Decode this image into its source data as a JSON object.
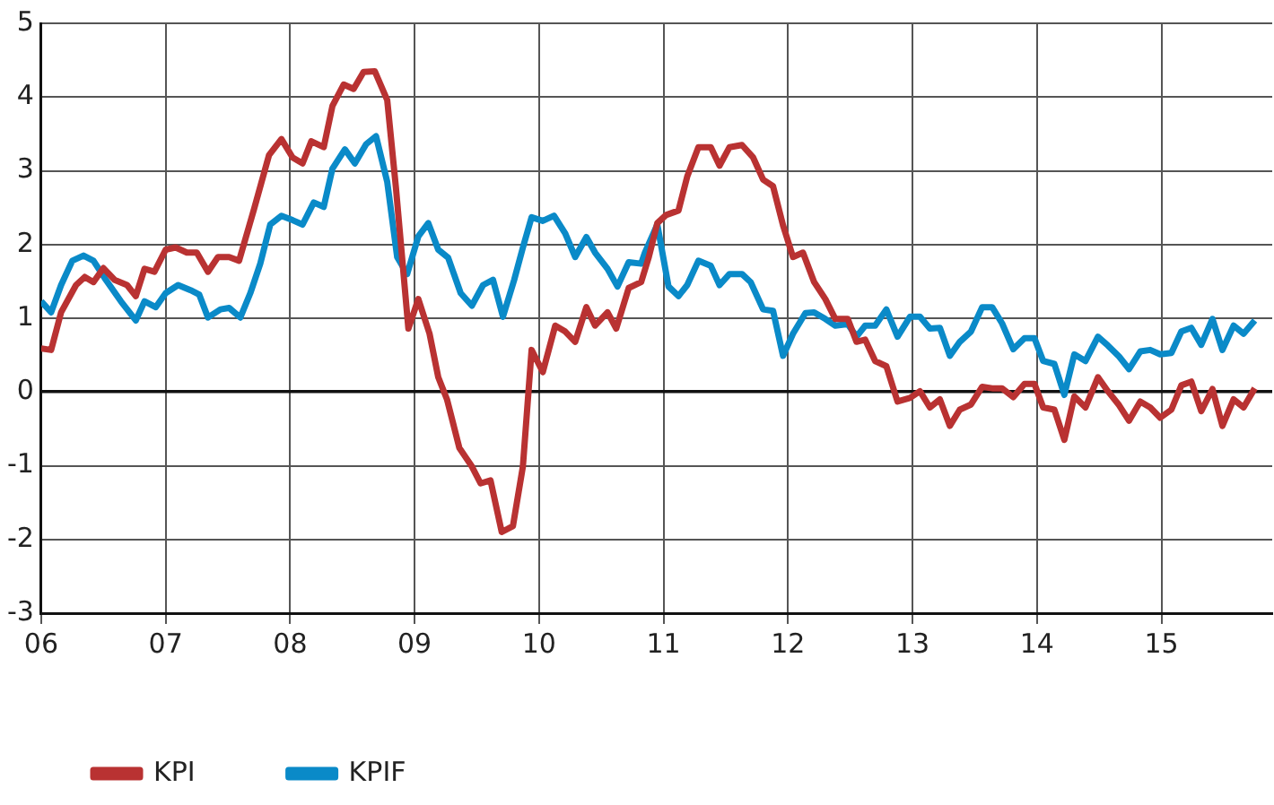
{
  "chart_data": {
    "type": "line",
    "xlim": [
      2006,
      2015.89
    ],
    "ylim": [
      -3,
      5
    ],
    "xticks": [
      {
        "value": 2006,
        "label": "06"
      },
      {
        "value": 2007,
        "label": "07"
      },
      {
        "value": 2008,
        "label": "08"
      },
      {
        "value": 2009,
        "label": "09"
      },
      {
        "value": 2010,
        "label": "10"
      },
      {
        "value": 2011,
        "label": "11"
      },
      {
        "value": 2012,
        "label": "12"
      },
      {
        "value": 2013,
        "label": "13"
      },
      {
        "value": 2014,
        "label": "14"
      },
      {
        "value": 2015,
        "label": "15"
      }
    ],
    "yticks": [
      -3,
      -2,
      -1,
      0,
      1,
      2,
      3,
      4,
      5
    ],
    "grid": true,
    "legend": "bottom left",
    "marker": "none",
    "line_style": "solid",
    "series": [
      {
        "name": "KPI",
        "color": "#b93232",
        "x": [
          2006.0,
          2006.08,
          2006.16,
          2006.28,
          2006.35,
          2006.42,
          2006.5,
          2006.59,
          2006.69,
          2006.76,
          2006.83,
          2006.91,
          2007.0,
          2007.08,
          2007.17,
          2007.25,
          2007.34,
          2007.42,
          2007.51,
          2007.59,
          2007.71,
          2007.83,
          2007.93,
          2008.02,
          2008.1,
          2008.17,
          2008.27,
          2008.34,
          2008.43,
          2008.51,
          2008.59,
          2008.68,
          2008.78,
          2008.85,
          2008.95,
          2009.03,
          2009.12,
          2009.19,
          2009.26,
          2009.36,
          2009.46,
          2009.53,
          2009.61,
          2009.7,
          2009.79,
          2009.87,
          2009.94,
          2010.03,
          2010.13,
          2010.21,
          2010.29,
          2010.38,
          2010.45,
          2010.55,
          2010.62,
          2010.72,
          2010.82,
          2010.88,
          2010.95,
          2011.02,
          2011.12,
          2011.19,
          2011.28,
          2011.38,
          2011.45,
          2011.53,
          2011.63,
          2011.72,
          2011.8,
          2011.88,
          2011.96,
          2012.04,
          2012.12,
          2012.21,
          2012.3,
          2012.38,
          2012.48,
          2012.55,
          2012.62,
          2012.7,
          2012.79,
          2012.88,
          2012.98,
          2013.06,
          2013.14,
          2013.22,
          2013.3,
          2013.38,
          2013.47,
          2013.56,
          2013.64,
          2013.72,
          2013.81,
          2013.9,
          2013.98,
          2014.05,
          2014.14,
          2014.22,
          2014.3,
          2014.39,
          2014.49,
          2014.57,
          2014.66,
          2014.74,
          2014.83,
          2014.91,
          2014.99,
          2015.08,
          2015.16,
          2015.24,
          2015.32,
          2015.41,
          2015.49,
          2015.58,
          2015.66,
          2015.75
        ],
        "values": [
          0.59,
          0.57,
          1.08,
          1.45,
          1.56,
          1.49,
          1.68,
          1.52,
          1.45,
          1.3,
          1.67,
          1.63,
          1.93,
          1.96,
          1.89,
          1.89,
          1.63,
          1.83,
          1.83,
          1.78,
          2.48,
          3.21,
          3.43,
          3.18,
          3.1,
          3.4,
          3.32,
          3.88,
          4.17,
          4.11,
          4.34,
          4.35,
          3.96,
          2.77,
          0.86,
          1.26,
          0.79,
          0.2,
          -0.1,
          -0.76,
          -1.01,
          -1.24,
          -1.2,
          -1.9,
          -1.82,
          -1.01,
          0.57,
          0.27,
          0.9,
          0.82,
          0.68,
          1.15,
          0.9,
          1.08,
          0.86,
          1.41,
          1.49,
          1.82,
          2.29,
          2.4,
          2.46,
          2.92,
          3.32,
          3.32,
          3.07,
          3.32,
          3.35,
          3.18,
          2.88,
          2.79,
          2.26,
          1.83,
          1.89,
          1.49,
          1.26,
          0.99,
          0.99,
          0.68,
          0.71,
          0.42,
          0.35,
          -0.13,
          -0.08,
          0.01,
          -0.21,
          -0.1,
          -0.46,
          -0.24,
          -0.17,
          0.07,
          0.05,
          0.05,
          -0.07,
          0.11,
          0.11,
          -0.21,
          -0.24,
          -0.65,
          -0.06,
          -0.21,
          0.2,
          0.01,
          -0.18,
          -0.39,
          -0.13,
          -0.21,
          -0.35,
          -0.24,
          0.09,
          0.14,
          -0.26,
          0.04,
          -0.46,
          -0.1,
          -0.21,
          0.05
        ]
      },
      {
        "name": "KPIF",
        "color": "#0a8ac8",
        "x": [
          2006.0,
          2006.08,
          2006.16,
          2006.25,
          2006.34,
          2006.42,
          2006.52,
          2006.64,
          2006.76,
          2006.83,
          2006.92,
          2007.0,
          2007.1,
          2007.2,
          2007.27,
          2007.34,
          2007.44,
          2007.51,
          2007.6,
          2007.68,
          2007.76,
          2007.84,
          2007.93,
          2008.02,
          2008.1,
          2008.19,
          2008.27,
          2008.34,
          2008.44,
          2008.52,
          2008.61,
          2008.69,
          2008.78,
          2008.86,
          2008.94,
          2009.03,
          2009.11,
          2009.19,
          2009.27,
          2009.37,
          2009.46,
          2009.55,
          2009.63,
          2009.71,
          2009.8,
          2009.87,
          2009.94,
          2010.03,
          2010.12,
          2010.21,
          2010.29,
          2010.38,
          2010.45,
          2010.55,
          2010.63,
          2010.72,
          2010.82,
          2010.85,
          2010.95,
          2011.04,
          2011.12,
          2011.19,
          2011.28,
          2011.38,
          2011.45,
          2011.53,
          2011.63,
          2011.7,
          2011.8,
          2011.88,
          2011.96,
          2012.04,
          2012.14,
          2012.21,
          2012.3,
          2012.38,
          2012.48,
          2012.55,
          2012.62,
          2012.7,
          2012.79,
          2012.88,
          2012.98,
          2013.06,
          2013.14,
          2013.22,
          2013.3,
          2013.38,
          2013.47,
          2013.56,
          2013.64,
          2013.72,
          2013.81,
          2013.9,
          2013.98,
          2014.05,
          2014.14,
          2014.22,
          2014.3,
          2014.39,
          2014.49,
          2014.57,
          2014.66,
          2014.74,
          2014.83,
          2014.91,
          2014.99,
          2015.08,
          2015.16,
          2015.24,
          2015.32,
          2015.41,
          2015.49,
          2015.58,
          2015.66,
          2015.75
        ],
        "values": [
          1.23,
          1.08,
          1.45,
          1.78,
          1.85,
          1.78,
          1.52,
          1.23,
          0.97,
          1.23,
          1.15,
          1.34,
          1.45,
          1.38,
          1.32,
          1.01,
          1.12,
          1.14,
          1.01,
          1.34,
          1.74,
          2.27,
          2.39,
          2.33,
          2.27,
          2.57,
          2.51,
          3.03,
          3.29,
          3.1,
          3.36,
          3.47,
          2.85,
          1.83,
          1.6,
          2.11,
          2.29,
          1.93,
          1.82,
          1.34,
          1.17,
          1.45,
          1.52,
          1.02,
          1.52,
          1.96,
          2.37,
          2.32,
          2.39,
          2.15,
          1.83,
          2.1,
          1.89,
          1.67,
          1.43,
          1.76,
          1.74,
          1.89,
          2.27,
          1.43,
          1.3,
          1.45,
          1.78,
          1.71,
          1.45,
          1.6,
          1.6,
          1.49,
          1.12,
          1.1,
          0.49,
          0.79,
          1.07,
          1.08,
          0.99,
          0.9,
          0.92,
          0.75,
          0.9,
          0.9,
          1.12,
          0.75,
          1.02,
          1.02,
          0.86,
          0.87,
          0.49,
          0.68,
          0.82,
          1.15,
          1.15,
          0.93,
          0.58,
          0.73,
          0.73,
          0.42,
          0.38,
          -0.04,
          0.51,
          0.42,
          0.75,
          0.63,
          0.48,
          0.31,
          0.55,
          0.57,
          0.51,
          0.53,
          0.82,
          0.87,
          0.64,
          0.99,
          0.57,
          0.9,
          0.79,
          0.97
        ]
      }
    ]
  }
}
